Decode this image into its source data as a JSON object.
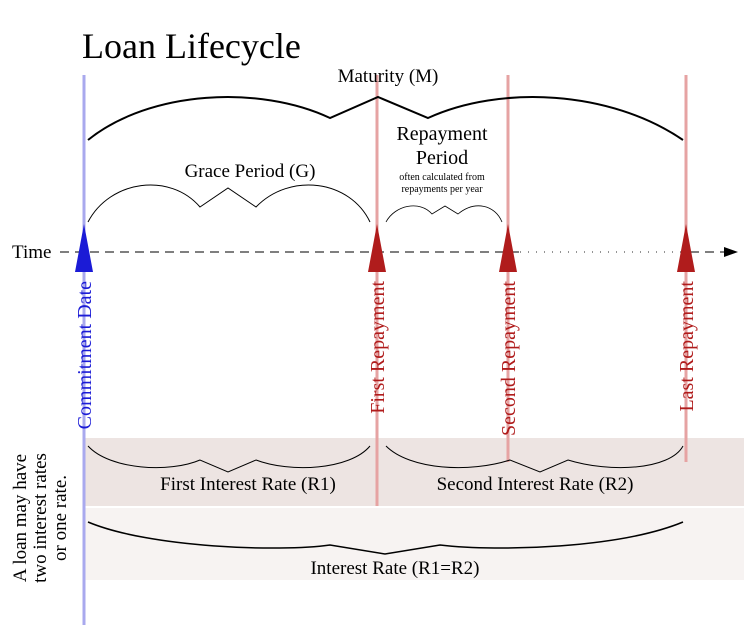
{
  "title": "Loan Lifecycle",
  "axis_label": "Time",
  "spans": {
    "maturity": "Maturity (M)",
    "grace": "Grace Period (G)",
    "repayment_line1": "Repayment",
    "repayment_line2": "Period",
    "repayment_note1": "often calculated from",
    "repayment_note2": "repayments per year"
  },
  "markers": {
    "commitment": "Commitment Date",
    "first": "First Repayment",
    "second": "Second Repayment",
    "last": "Last Repayment"
  },
  "rates": {
    "first": "First Interest Rate (R1)",
    "second": "Second Interest Rate (R2)",
    "single": "Interest Rate (R1=R2)"
  },
  "side_note": {
    "line1": "A loan may have",
    "line2": "two interest rates",
    "line3": "or one rate."
  },
  "colors": {
    "commitment": "#1b1bd6",
    "repayment": "#b01c1c",
    "commitment_line": "#a9a9ee",
    "repayment_line": "#e6a3a3",
    "band_two_rates": "#ede4e2",
    "band_one_rate": "#f7f3f2"
  }
}
